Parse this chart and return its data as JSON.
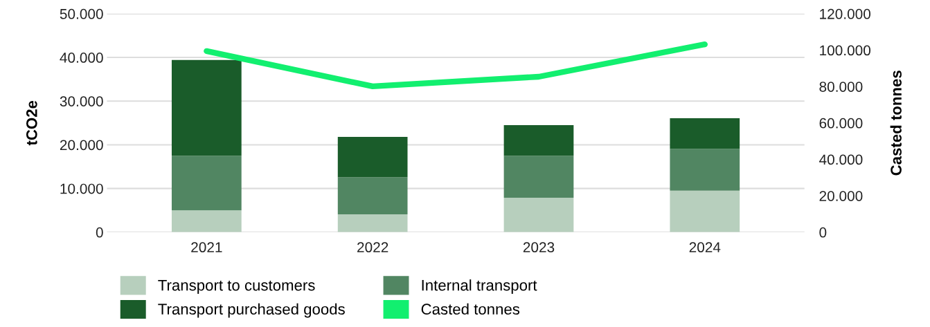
{
  "chart_data": {
    "type": "bar",
    "stacked": true,
    "categories": [
      "2021",
      "2022",
      "2023",
      "2024"
    ],
    "series": [
      {
        "name": "Transport to customers",
        "color": "#b7cfbd",
        "values": [
          5000,
          4100,
          7900,
          9500
        ]
      },
      {
        "name": "Internal transport",
        "color": "#518662",
        "values": [
          12500,
          8500,
          9600,
          9600
        ]
      },
      {
        "name": "Transport purchased goods",
        "color": "#1a5c2a",
        "values": [
          21900,
          9200,
          7000,
          7000
        ]
      },
      {
        "name": "Casted tonnes",
        "color": "#12ef6f",
        "type": "line",
        "axis": "y2",
        "values": [
          99500,
          80100,
          85400,
          103200
        ]
      }
    ],
    "ylabel": "tCO2e",
    "y2label": "Casted tonnes",
    "ylim": [
      0,
      50000
    ],
    "yticks": [
      {
        "value": 0,
        "label": "0"
      },
      {
        "value": 10000,
        "label": "10.000"
      },
      {
        "value": 20000,
        "label": "20.000"
      },
      {
        "value": 30000,
        "label": "30.000"
      },
      {
        "value": 40000,
        "label": "40.000"
      },
      {
        "value": 50000,
        "label": "50.000"
      }
    ],
    "y2lim": [
      0,
      120000
    ],
    "y2ticks": [
      {
        "value": 0,
        "label": "0"
      },
      {
        "value": 20000,
        "label": "20.000"
      },
      {
        "value": 40000,
        "label": "40.000"
      },
      {
        "value": 60000,
        "label": "60.000"
      },
      {
        "value": 80000,
        "label": "80.000"
      },
      {
        "value": 100000,
        "label": "100.000"
      },
      {
        "value": 120000,
        "label": "120.000"
      }
    ],
    "grid": "y",
    "legend": "bottom",
    "marker": "none",
    "line_style": "solid"
  }
}
